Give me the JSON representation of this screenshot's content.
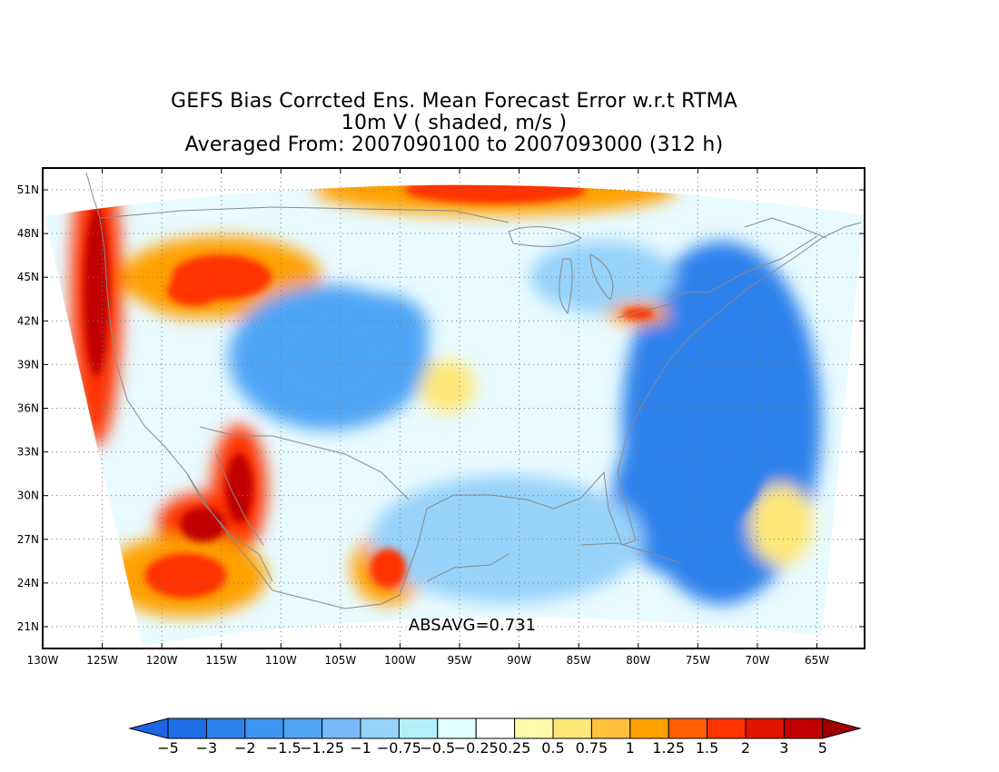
{
  "titles": [
    "GEFS Bias Corrcted Ens. Mean Forecast Error w.r.t RTMA",
    "10m V ( shaded, m/s )",
    "Averaged From: 2007090100 to 2007093000 (312 h)"
  ],
  "stat_label": "ABSAVG=0.731",
  "map": {
    "lon_range": [
      -130,
      -61
    ],
    "lat_range": [
      19.5,
      52.5
    ],
    "lat_ticks": [
      {
        "value": 51,
        "label": "51N"
      },
      {
        "value": 48,
        "label": "48N"
      },
      {
        "value": 45,
        "label": "45N"
      },
      {
        "value": 42,
        "label": "42N"
      },
      {
        "value": 39,
        "label": "39N"
      },
      {
        "value": 36,
        "label": "36N"
      },
      {
        "value": 33,
        "label": "33N"
      },
      {
        "value": 30,
        "label": "30N"
      },
      {
        "value": 27,
        "label": "27N"
      },
      {
        "value": 24,
        "label": "24N"
      },
      {
        "value": 21,
        "label": "21N"
      }
    ],
    "lon_ticks": [
      {
        "value": -130,
        "label": "130W"
      },
      {
        "value": -125,
        "label": "125W"
      },
      {
        "value": -120,
        "label": "120W"
      },
      {
        "value": -115,
        "label": "115W"
      },
      {
        "value": -110,
        "label": "110W"
      },
      {
        "value": -105,
        "label": "105W"
      },
      {
        "value": -100,
        "label": "100W"
      },
      {
        "value": -95,
        "label": "95W"
      },
      {
        "value": -90,
        "label": "90W"
      },
      {
        "value": -85,
        "label": "85W"
      },
      {
        "value": -80,
        "label": "80W"
      },
      {
        "value": -75,
        "label": "75W"
      },
      {
        "value": -70,
        "label": "70W"
      },
      {
        "value": -65,
        "label": "65W"
      }
    ],
    "grid": true,
    "grid_style": "dotted",
    "projection": "lambert-conformal-like domain, shown on lat/lon frame"
  },
  "colorbar": {
    "under_color": "#1e64e6",
    "over_color": "#a00000",
    "colors": [
      "#1e6ee6",
      "#2e82ec",
      "#3c96f0",
      "#50a5f5",
      "#78b9fa",
      "#96d2fa",
      "#b4f0fa",
      "#e1ffff",
      "#ffffff",
      "#fffaaa",
      "#ffe878",
      "#ffc03c",
      "#ffa000",
      "#ff6000",
      "#ff3200",
      "#e11400",
      "#c00000"
    ],
    "labels": [
      "−5",
      "−3",
      "−2",
      "−1.5",
      "−1.25",
      "−1",
      "−0.75",
      "−0.5",
      "−0.25",
      "0.25",
      "0.5",
      "0.75",
      "1",
      "1.25",
      "1.5",
      "2",
      "3",
      "5"
    ]
  },
  "field_features": [
    {
      "name": "pacific-nw-coast",
      "sign": "positive",
      "strength": "strong",
      "lon": -125.5,
      "lat": 44.0
    },
    {
      "name": "rockies-north",
      "sign": "positive",
      "strength": "moderate",
      "lon": -115.0,
      "lat": 45.0
    },
    {
      "name": "baja-gulf-california",
      "sign": "positive",
      "strength": "strong",
      "lon": -113.5,
      "lat": 30.5
    },
    {
      "name": "southwest-offshore",
      "sign": "positive",
      "strength": "moderate",
      "lon": -118.0,
      "lat": 24.5
    },
    {
      "name": "mexico-interior",
      "sign": "positive",
      "strength": "moderate",
      "lon": -101.0,
      "lat": 25.0
    },
    {
      "name": "northern-canada-band",
      "sign": "positive",
      "strength": "moderate",
      "lon": -92.0,
      "lat": 51.0
    },
    {
      "name": "great-plains-west",
      "sign": "negative",
      "strength": "moderate",
      "lon": -106.0,
      "lat": 39.5
    },
    {
      "name": "atlantic-east-coast",
      "sign": "negative",
      "strength": "strong",
      "lon": -73.0,
      "lat": 35.0
    },
    {
      "name": "gulf-of-mexico",
      "sign": "negative",
      "strength": "weak",
      "lon": -91.0,
      "lat": 27.0
    },
    {
      "name": "great-lakes",
      "sign": "negative",
      "strength": "weak",
      "lon": -83.0,
      "lat": 45.0
    },
    {
      "name": "lake-erie-ontario",
      "sign": "positive",
      "strength": "moderate",
      "lon": -80.0,
      "lat": 42.5
    },
    {
      "name": "bermuda-area",
      "sign": "positive",
      "strength": "weak",
      "lon": -68.0,
      "lat": 28.0
    },
    {
      "name": "texas-panhandle",
      "sign": "positive",
      "strength": "weak",
      "lon": -96.0,
      "lat": 37.5
    }
  ]
}
